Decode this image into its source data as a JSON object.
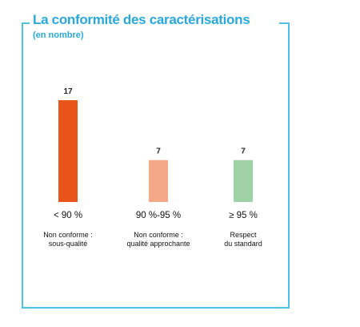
{
  "chart_data": {
    "type": "bar",
    "title": "La conformité des caractérisations",
    "subtitle": "(en nombre)",
    "categories": [
      "< 90 %",
      "90 %-95 %",
      "≥ 95 %"
    ],
    "descriptions": [
      [
        "Non conforme :",
        "sous-qualité"
      ],
      [
        "Non conforme :",
        "qualité approchante"
      ],
      [
        "Respect",
        "du standard"
      ]
    ],
    "values": [
      17,
      7,
      7
    ],
    "value_labels": [
      "17",
      "7",
      "7"
    ],
    "colors": [
      "#e8541a",
      "#f4a888",
      "#9fd3a6"
    ],
    "ylim": [
      0,
      17
    ],
    "grid": false,
    "legend": "none"
  }
}
